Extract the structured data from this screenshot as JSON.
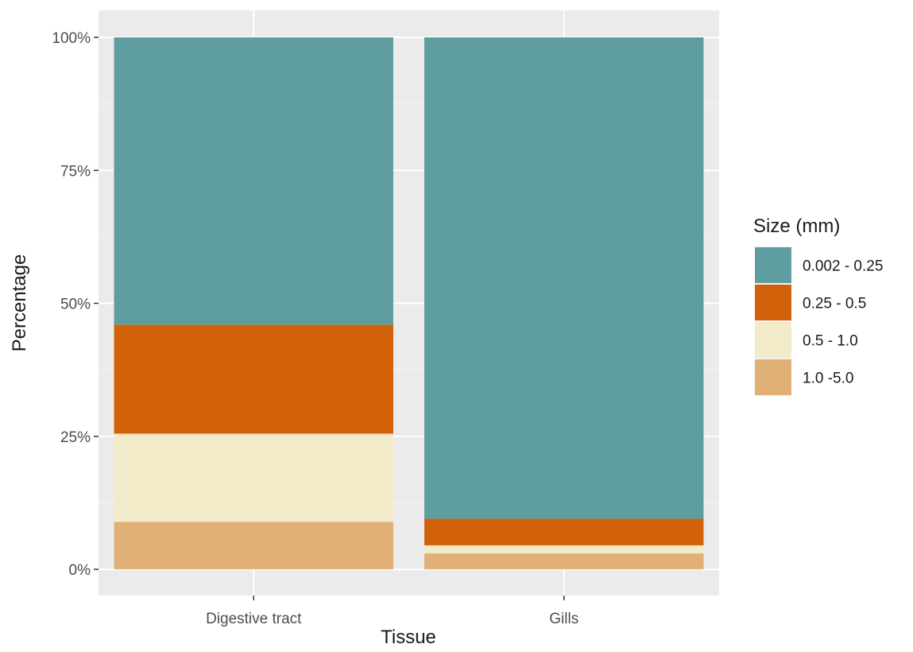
{
  "chart_data": {
    "type": "bar",
    "stacked": true,
    "percent": true,
    "categories": [
      "Digestive tract",
      "Gills"
    ],
    "series": [
      {
        "name": "0.002 - 0.25",
        "color": "#5f9ea0",
        "values": [
          54,
          90.5
        ]
      },
      {
        "name": "0.25 - 0.5",
        "color": "#d2620a",
        "values": [
          20.5,
          5
        ]
      },
      {
        "name": "0.5 - 1.0",
        "color": "#f2ebc9",
        "values": [
          16.6,
          1.5
        ]
      },
      {
        "name": "1.0 -5.0",
        "color": "#e0b077",
        "values": [
          8.9,
          3
        ]
      }
    ],
    "xlabel": "Tissue",
    "ylabel": "Percentage",
    "ylim": [
      0,
      100
    ],
    "yticks": [
      "0%",
      "25%",
      "50%",
      "75%",
      "100%"
    ],
    "ytick_values": [
      0,
      25,
      50,
      75,
      100
    ],
    "grid": true,
    "legend": {
      "title": "Size (mm)",
      "position": "right"
    },
    "panel_background": "#ebebeb"
  }
}
